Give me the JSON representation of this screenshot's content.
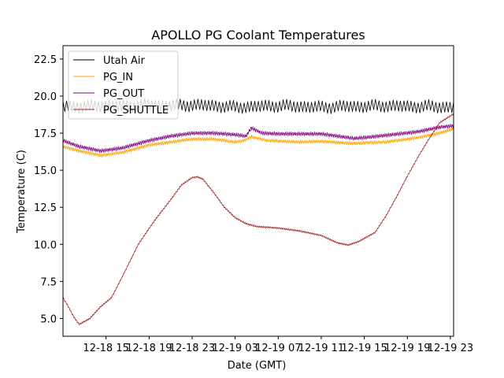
{
  "chart_data": {
    "type": "line",
    "title": "APOLLO PG Coolant Temperatures",
    "xlabel": "Date (GMT)",
    "ylabel": "Temperature (C)",
    "x_unit": "hours since 2012-12-18 11:00 GMT",
    "xlim": [
      0,
      36.3
    ],
    "ylim": [
      3.8,
      23.4
    ],
    "y_ticks": [
      5.0,
      7.5,
      10.0,
      12.5,
      15.0,
      17.5,
      20.0,
      22.5
    ],
    "y_tick_labels": [
      "5.0",
      "7.5",
      "10.0",
      "12.5",
      "15.0",
      "17.5",
      "20.0",
      "22.5"
    ],
    "x_ticks": [
      4,
      8,
      12,
      16,
      20,
      24,
      28,
      32,
      36
    ],
    "x_tick_labels": [
      "12-18 15",
      "12-18 19",
      "12-18 23",
      "12-19 03",
      "12-19 07",
      "12-19 11",
      "12-19 15",
      "12-19 19",
      "12-19 23"
    ],
    "grid": false,
    "legend_position": "top-left",
    "series": [
      {
        "name": "Utah Air",
        "color": "#000000",
        "x": [
          0,
          2,
          4,
          6,
          8,
          10,
          12,
          14,
          16,
          18,
          20,
          22,
          24,
          26,
          28,
          30,
          32,
          34,
          36,
          36.3
        ],
        "values": [
          19.3,
          19.3,
          19.35,
          19.3,
          19.4,
          19.35,
          19.4,
          19.35,
          19.25,
          19.3,
          19.35,
          19.3,
          19.25,
          19.3,
          19.3,
          19.35,
          19.3,
          19.3,
          19.25,
          19.25
        ],
        "oscillation": 0.35
      },
      {
        "name": "PG_IN",
        "color": "#ffa500",
        "x": [
          0,
          1.5,
          3.5,
          5.5,
          8,
          10,
          12,
          14,
          16,
          16.8,
          17.5,
          19,
          22,
          24,
          26,
          27,
          28,
          30,
          33,
          35,
          36.3
        ],
        "values": [
          16.6,
          16.3,
          16.0,
          16.2,
          16.7,
          16.9,
          17.1,
          17.1,
          16.9,
          17.0,
          17.25,
          17.0,
          16.9,
          16.95,
          16.85,
          16.8,
          16.85,
          16.9,
          17.2,
          17.5,
          17.8
        ],
        "oscillation": 0.08
      },
      {
        "name": "PG_OUT",
        "color": "#800080",
        "x": [
          0,
          1.5,
          3.5,
          5.5,
          8,
          10,
          12,
          14,
          16,
          17,
          17.5,
          18.5,
          20,
          22,
          24,
          26,
          27,
          28,
          30,
          33,
          35,
          36.3
        ],
        "values": [
          17.0,
          16.6,
          16.3,
          16.5,
          17.0,
          17.3,
          17.5,
          17.5,
          17.4,
          17.3,
          17.85,
          17.5,
          17.45,
          17.45,
          17.45,
          17.25,
          17.15,
          17.2,
          17.35,
          17.6,
          17.9,
          18.0
        ],
        "oscillation": 0.09
      },
      {
        "name": "PG_SHUTTLE",
        "color": "#a52a2a",
        "x": [
          0,
          0.5,
          1,
          1.5,
          2,
          2.5,
          3.5,
          4.5,
          5.5,
          7,
          8.5,
          10,
          11,
          12,
          12.5,
          13,
          14,
          15,
          16,
          17,
          18,
          20,
          22,
          24,
          25.5,
          26.5,
          27.5,
          29,
          30,
          31,
          32,
          33,
          34,
          35,
          36.3
        ],
        "values": [
          6.4,
          5.8,
          5.1,
          4.6,
          4.8,
          5.0,
          5.8,
          6.4,
          7.8,
          10.0,
          11.6,
          13.0,
          14.0,
          14.5,
          14.55,
          14.4,
          13.5,
          12.5,
          11.8,
          11.4,
          11.2,
          11.1,
          10.9,
          10.6,
          10.1,
          9.95,
          10.2,
          10.8,
          11.9,
          13.2,
          14.6,
          15.9,
          17.1,
          18.2,
          18.8
        ],
        "oscillation": 0.04
      }
    ]
  }
}
